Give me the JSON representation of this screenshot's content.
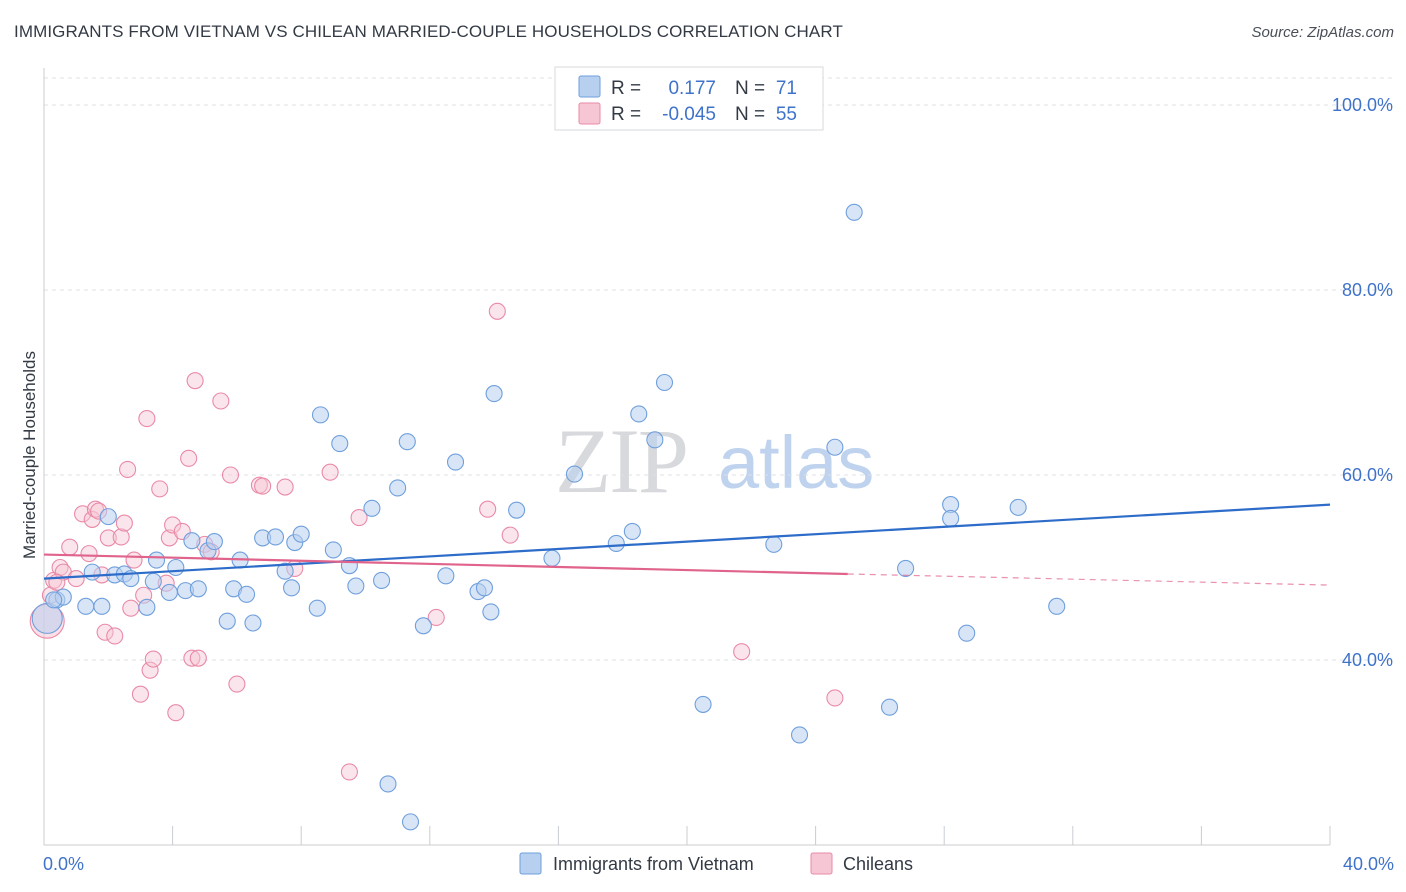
{
  "title": "IMMIGRANTS FROM VIETNAM VS CHILEAN MARRIED-COUPLE HOUSEHOLDS CORRELATION CHART",
  "source": "Source: ZipAtlas.com",
  "watermark": {
    "zip": "ZIP",
    "atlas": "atlas"
  },
  "colors": {
    "blue_fill": "#b8d0f0",
    "blue_stroke": "#6f9fdc",
    "blue_line": "#2d6cc9",
    "pink_fill": "#f7c6d4",
    "pink_stroke": "#e98aa7",
    "pink_line": "#e0638b",
    "tick_text": "#3f72c9",
    "grid": "#dde0e6"
  },
  "legend": {
    "rows": [
      {
        "r_label": "R =",
        "r_value": "0.177",
        "n_label": "N =",
        "n_value": "71"
      },
      {
        "r_label": "R =",
        "r_value": "-0.045",
        "n_label": "N =",
        "n_value": "55"
      }
    ]
  },
  "chart_data": {
    "type": "scatter",
    "title": "IMMIGRANTS FROM VIETNAM VS CHILEAN MARRIED-COUPLE HOUSEHOLDS CORRELATION CHART",
    "xlabel": "",
    "ylabel": "Married-couple Households",
    "xlim": [
      0,
      40
    ],
    "ylim": [
      20,
      104
    ],
    "x_tick_labels": [
      "0.0%",
      "40.0%"
    ],
    "y_ticks": [
      {
        "value": 100,
        "label": "100.0%"
      },
      {
        "value": 80,
        "label": "80.0%"
      },
      {
        "value": 60,
        "label": "60.0%"
      },
      {
        "value": 40,
        "label": "40.0%"
      }
    ],
    "grid": true,
    "legend_position": "bottom-center",
    "series": [
      {
        "name": "Immigrants from Vietnam",
        "color": "blue",
        "trend": {
          "x1": 0,
          "y1": 48.8,
          "x2": 40,
          "y2": 56.8
        },
        "points": [
          [
            0.1,
            44.5
          ],
          [
            0.4,
            46.5
          ],
          [
            0.6,
            46.8
          ],
          [
            1.3,
            45.8
          ],
          [
            1.5,
            49.5
          ],
          [
            1.8,
            45.8
          ],
          [
            2.0,
            55.5
          ],
          [
            2.2,
            49.2
          ],
          [
            2.5,
            49.3
          ],
          [
            2.7,
            48.8
          ],
          [
            3.2,
            45.7
          ],
          [
            3.4,
            48.5
          ],
          [
            3.5,
            50.8
          ],
          [
            3.9,
            47.3
          ],
          [
            4.1,
            50.0
          ],
          [
            4.4,
            47.5
          ],
          [
            4.6,
            52.9
          ],
          [
            4.8,
            47.7
          ],
          [
            5.1,
            51.8
          ],
          [
            5.3,
            52.8
          ],
          [
            5.7,
            44.2
          ],
          [
            5.9,
            47.7
          ],
          [
            6.1,
            50.8
          ],
          [
            6.3,
            47.1
          ],
          [
            6.5,
            44.0
          ],
          [
            6.8,
            53.2
          ],
          [
            7.2,
            53.3
          ],
          [
            7.5,
            49.6
          ],
          [
            7.7,
            47.8
          ],
          [
            7.8,
            52.7
          ],
          [
            8.0,
            53.6
          ],
          [
            8.5,
            45.6
          ],
          [
            8.6,
            66.5
          ],
          [
            9.0,
            51.9
          ],
          [
            9.2,
            63.4
          ],
          [
            9.5,
            50.2
          ],
          [
            9.7,
            48.0
          ],
          [
            10.2,
            56.4
          ],
          [
            10.5,
            48.6
          ],
          [
            11.0,
            58.6
          ],
          [
            11.3,
            63.6
          ],
          [
            11.8,
            43.7
          ],
          [
            12.5,
            49.1
          ],
          [
            12.8,
            61.4
          ],
          [
            13.5,
            47.4
          ],
          [
            13.7,
            47.8
          ],
          [
            13.9,
            45.2
          ],
          [
            14.0,
            68.8
          ],
          [
            14.7,
            56.2
          ],
          [
            15.8,
            51.0
          ],
          [
            16.5,
            60.1
          ],
          [
            17.8,
            52.6
          ],
          [
            18.3,
            53.9
          ],
          [
            18.5,
            66.6
          ],
          [
            19.0,
            63.8
          ],
          [
            19.3,
            70.0
          ],
          [
            20.5,
            35.2
          ],
          [
            22.7,
            52.5
          ],
          [
            23.5,
            31.9
          ],
          [
            24.6,
            63.0
          ],
          [
            25.2,
            88.4
          ],
          [
            26.3,
            34.9
          ],
          [
            26.8,
            49.9
          ],
          [
            28.2,
            56.8
          ],
          [
            28.2,
            55.3
          ],
          [
            28.7,
            42.9
          ],
          [
            30.3,
            56.5
          ],
          [
            31.5,
            45.8
          ],
          [
            10.7,
            26.6
          ],
          [
            11.4,
            22.5
          ],
          [
            0.3,
            46.5
          ]
        ]
      },
      {
        "name": "Chileans",
        "color": "pink",
        "trend": {
          "x1": 0,
          "y1": 51.4,
          "x2": 25,
          "y2": 49.3
        },
        "trend_dashed": {
          "x1": 25,
          "y1": 49.3,
          "x2": 40,
          "y2": 48.1
        },
        "points": [
          [
            0.1,
            44.2
          ],
          [
            0.2,
            47.0
          ],
          [
            0.3,
            48.6
          ],
          [
            0.5,
            50.0
          ],
          [
            0.6,
            49.5
          ],
          [
            0.8,
            52.2
          ],
          [
            1.0,
            48.8
          ],
          [
            1.2,
            55.8
          ],
          [
            1.4,
            51.5
          ],
          [
            1.5,
            55.2
          ],
          [
            1.6,
            56.3
          ],
          [
            1.7,
            56.1
          ],
          [
            1.8,
            49.2
          ],
          [
            1.9,
            43.0
          ],
          [
            2.0,
            53.2
          ],
          [
            2.2,
            42.6
          ],
          [
            2.4,
            53.3
          ],
          [
            2.5,
            54.8
          ],
          [
            2.6,
            60.6
          ],
          [
            2.7,
            45.6
          ],
          [
            2.8,
            50.8
          ],
          [
            3.0,
            36.3
          ],
          [
            3.1,
            47.0
          ],
          [
            3.2,
            66.1
          ],
          [
            3.3,
            38.9
          ],
          [
            3.4,
            40.1
          ],
          [
            3.6,
            58.5
          ],
          [
            3.8,
            48.3
          ],
          [
            3.9,
            53.2
          ],
          [
            4.0,
            54.6
          ],
          [
            4.1,
            34.3
          ],
          [
            4.3,
            53.9
          ],
          [
            4.5,
            61.8
          ],
          [
            4.6,
            40.2
          ],
          [
            4.7,
            70.2
          ],
          [
            4.8,
            40.2
          ],
          [
            5.0,
            52.5
          ],
          [
            5.2,
            51.7
          ],
          [
            5.5,
            68.0
          ],
          [
            5.8,
            60.0
          ],
          [
            6.0,
            37.4
          ],
          [
            6.7,
            58.9
          ],
          [
            6.8,
            58.8
          ],
          [
            7.5,
            58.7
          ],
          [
            7.8,
            49.9
          ],
          [
            8.9,
            60.3
          ],
          [
            9.5,
            27.9
          ],
          [
            9.8,
            55.4
          ],
          [
            12.2,
            44.6
          ],
          [
            13.8,
            56.3
          ],
          [
            14.1,
            77.7
          ],
          [
            14.5,
            53.5
          ],
          [
            21.7,
            40.9
          ],
          [
            24.6,
            35.9
          ],
          [
            0.4,
            48.4
          ]
        ]
      }
    ]
  },
  "bottom_legend": {
    "items": [
      {
        "label": "Immigrants from Vietnam"
      },
      {
        "label": "Chileans"
      }
    ]
  }
}
